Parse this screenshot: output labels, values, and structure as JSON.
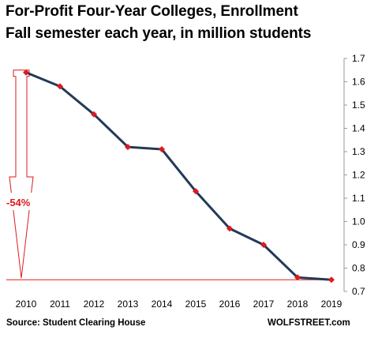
{
  "chart_data": {
    "type": "line",
    "title": "For-Profit Four-Year Colleges, Enrollment",
    "subtitle": "Fall semester each year, in million students",
    "x": [
      "2010",
      "2011",
      "2012",
      "2013",
      "2014",
      "2015",
      "2016",
      "2017",
      "2018",
      "2019"
    ],
    "series": [
      {
        "values": [
          1.64,
          1.58,
          1.46,
          1.32,
          1.31,
          1.13,
          0.97,
          0.9,
          0.76,
          0.75
        ]
      }
    ],
    "ylim": [
      0.7,
      1.7
    ],
    "yticks": [
      "0.7",
      "0.8",
      "0.9",
      "1.0",
      "1.1",
      "1.2",
      "1.3",
      "1.4",
      "1.5",
      "1.6",
      "1.7"
    ],
    "y_axis_side": "right",
    "grid": false,
    "annotation": {
      "text": "-54%",
      "from_year": "2010",
      "to_year": "2019"
    },
    "source": "Source: Student Clearing House",
    "credit": "WOLFSTREET.com",
    "colors": {
      "line": "#233a58",
      "marker": "#e0191d",
      "annotation": "#e0191d",
      "axis": "#9a9a9a"
    }
  }
}
